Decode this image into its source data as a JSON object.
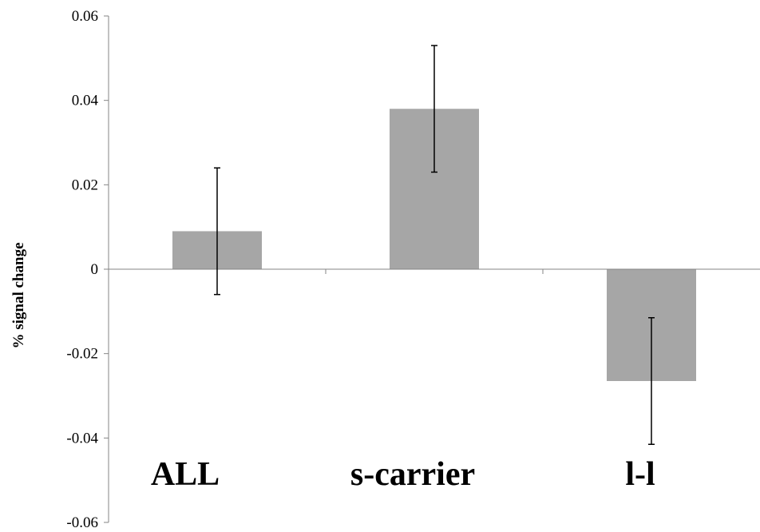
{
  "chart_data": {
    "type": "bar",
    "title": "",
    "xlabel": "",
    "ylabel": "% signal change",
    "categories": [
      "ALL",
      "s-carrier",
      "l-l"
    ],
    "values": [
      0.009,
      0.038,
      -0.0265
    ],
    "error_bars": [
      {
        "low": -0.006,
        "high": 0.024
      },
      {
        "low": 0.023,
        "high": 0.053
      },
      {
        "low": -0.0415,
        "high": -0.0115
      }
    ],
    "ylim": [
      -0.06,
      0.06
    ],
    "yticks": [
      "0.06",
      "0.04",
      "0.02",
      "0",
      "-0.02",
      "-0.04",
      "-0.06"
    ],
    "ytick_values": [
      0.06,
      0.04,
      0.02,
      0,
      -0.02,
      -0.04,
      -0.06
    ],
    "grid": false,
    "legend": "none",
    "colors": {
      "bar": "#a6a6a6",
      "axis": "#868686",
      "error_bar": "#000000"
    }
  }
}
